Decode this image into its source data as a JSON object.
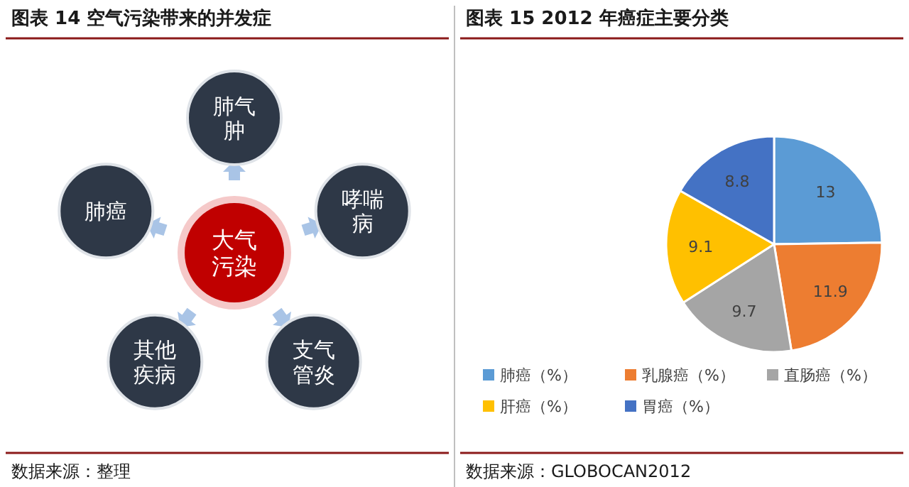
{
  "chart_data": [
    {
      "type": "other",
      "title": "图表 14 空气污染带来的并发症",
      "categories": [
        "大气污染",
        "肺气肿",
        "哮喘病",
        "支气管炎",
        "其他疾病",
        "肺癌"
      ],
      "annotations": [
        "数据来源：整理"
      ]
    },
    {
      "type": "pie",
      "title": "图表 15 2012 年癌症主要分类",
      "categories": [
        "肺癌（%）",
        "乳腺癌（%）",
        "直肠癌（%）",
        "肝癌（%）",
        "胃癌（%）"
      ],
      "values": [
        13,
        11.9,
        9.7,
        9.1,
        8.8
      ],
      "colors": [
        "#5b9bd5",
        "#ed7d31",
        "#a5a5a5",
        "#ffc000",
        "#4472c4"
      ],
      "data_labels": true,
      "legend": "bottom",
      "annotations": [
        "数据来源：GLOBOCAN2012"
      ]
    }
  ]
}
